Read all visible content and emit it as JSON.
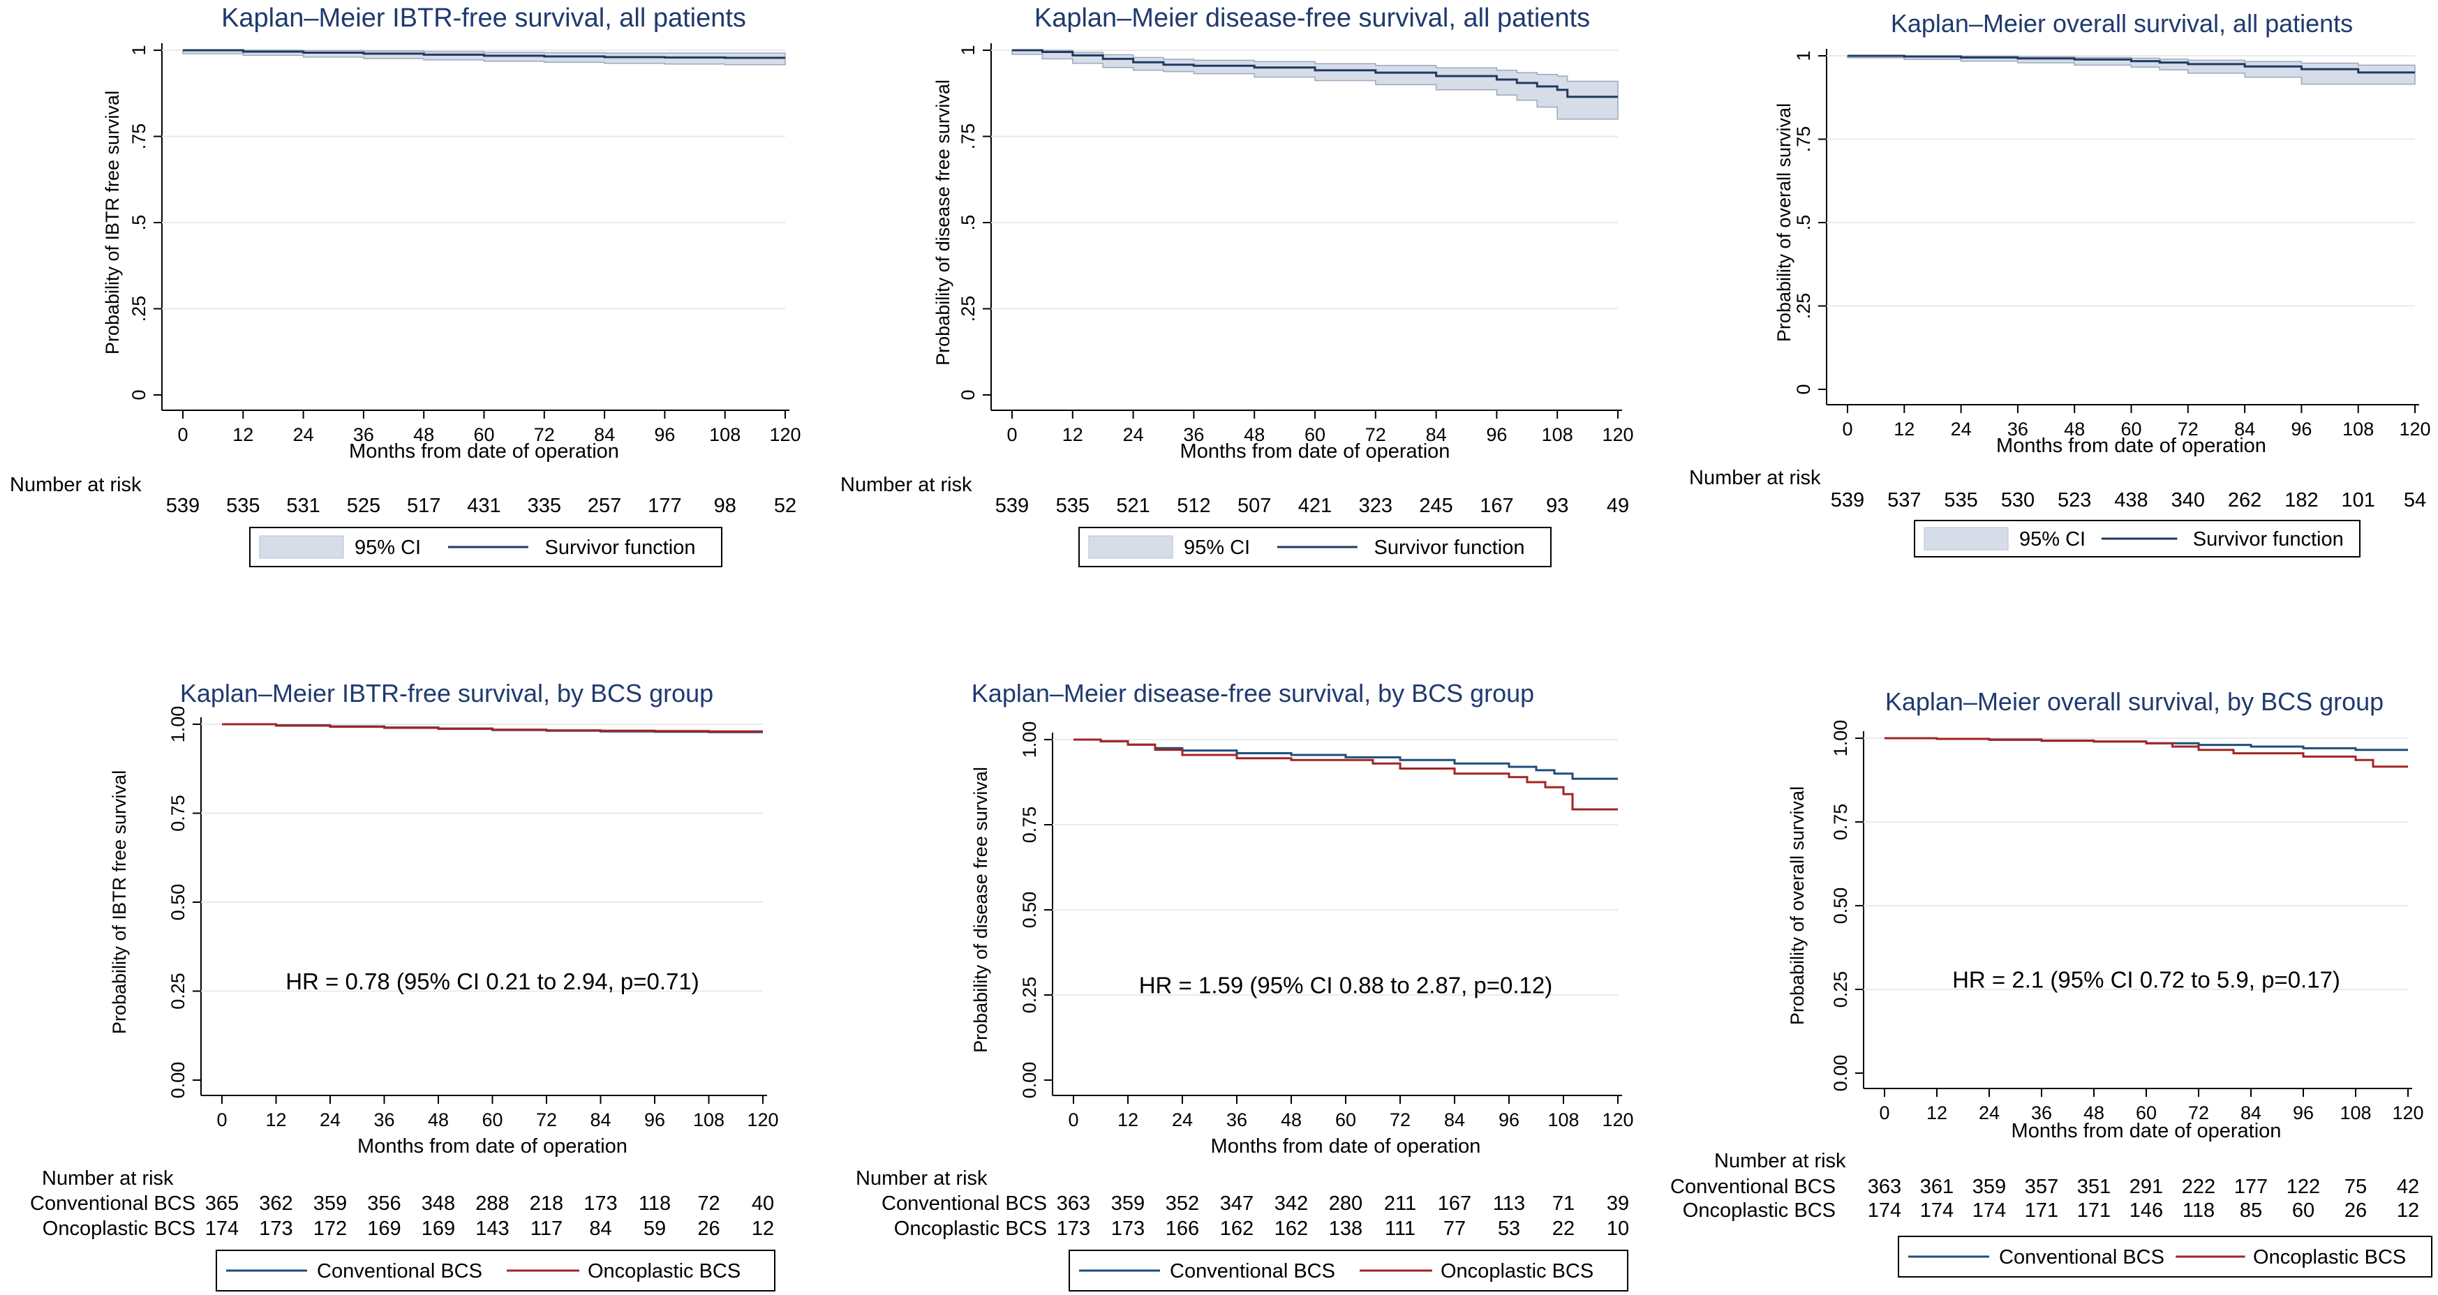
{
  "colors": {
    "single": "#1f3a5f",
    "ci_fill": "#d6dde8",
    "conventional": "#1f4e79",
    "oncoplastic": "#a32424",
    "title": "#1f3a6e",
    "axis": "#000000"
  },
  "chart_data": [
    {
      "id": "p1",
      "type": "line",
      "title": "Kaplan–Meier IBTR-free survival, all patients",
      "xlabel": "Months from date of operation",
      "ylabel": "Probability of IBTR free survival",
      "xlim": [
        0,
        120
      ],
      "ylim": [
        0,
        1
      ],
      "xticks": [
        "0",
        "12",
        "24",
        "36",
        "48",
        "60",
        "72",
        "84",
        "96",
        "108",
        "120"
      ],
      "yticks": [
        "0",
        ".25",
        ".5",
        ".75",
        "1"
      ],
      "series": [
        {
          "name": "Survivor function",
          "x": [
            0,
            12,
            24,
            36,
            48,
            60,
            72,
            84,
            96,
            108,
            120
          ],
          "y": [
            1.0,
            0.996,
            0.993,
            0.99,
            0.987,
            0.984,
            0.982,
            0.98,
            0.979,
            0.978,
            0.978
          ],
          "ci_low": [
            1.0,
            0.99,
            0.985,
            0.98,
            0.976,
            0.972,
            0.968,
            0.965,
            0.962,
            0.96,
            0.958
          ],
          "ci_high": [
            1.0,
            1.0,
            0.999,
            0.998,
            0.996,
            0.994,
            0.993,
            0.992,
            0.992,
            0.992,
            0.992
          ]
        }
      ],
      "risk_label": "Number at risk",
      "risk_rows": [
        {
          "name": "",
          "values": [
            "539",
            "535",
            "531",
            "525",
            "517",
            "431",
            "335",
            "257",
            "177",
            "98",
            "52"
          ]
        }
      ],
      "legend": [
        "95% CI",
        "Survivor function"
      ]
    },
    {
      "id": "p2",
      "type": "line",
      "title": "Kaplan–Meier disease-free survival, all patients",
      "xlabel": "Months from date of operation",
      "ylabel": "Probability of disease free survival",
      "xlim": [
        0,
        120
      ],
      "ylim": [
        0,
        1
      ],
      "xticks": [
        "0",
        "12",
        "24",
        "36",
        "48",
        "60",
        "72",
        "84",
        "96",
        "108",
        "120"
      ],
      "yticks": [
        "0",
        ".25",
        ".5",
        ".75",
        "1"
      ],
      "series": [
        {
          "name": "Survivor function",
          "x": [
            0,
            6,
            12,
            18,
            24,
            30,
            36,
            48,
            60,
            72,
            84,
            96,
            100,
            104,
            108,
            110,
            120
          ],
          "y": [
            1.0,
            0.995,
            0.985,
            0.975,
            0.965,
            0.958,
            0.955,
            0.95,
            0.942,
            0.935,
            0.925,
            0.915,
            0.905,
            0.895,
            0.885,
            0.865,
            0.865
          ],
          "ci_low": [
            1.0,
            0.988,
            0.975,
            0.962,
            0.95,
            0.942,
            0.938,
            0.932,
            0.922,
            0.912,
            0.9,
            0.885,
            0.87,
            0.855,
            0.835,
            0.8,
            0.8
          ],
          "ci_high": [
            1.0,
            1.0,
            0.994,
            0.987,
            0.979,
            0.974,
            0.971,
            0.967,
            0.961,
            0.956,
            0.949,
            0.942,
            0.935,
            0.93,
            0.925,
            0.91,
            0.91
          ]
        }
      ],
      "risk_label": "Number at risk",
      "risk_rows": [
        {
          "name": "",
          "values": [
            "539",
            "535",
            "521",
            "512",
            "507",
            "421",
            "323",
            "245",
            "167",
            "93",
            "49"
          ]
        }
      ],
      "legend": [
        "95% CI",
        "Survivor function"
      ]
    },
    {
      "id": "p3",
      "type": "line",
      "title": "Kaplan–Meier overall survival, all patients",
      "xlabel": "Months from date of operation",
      "ylabel": "Probability of overall survival",
      "xlim": [
        0,
        120
      ],
      "ylim": [
        0,
        1
      ],
      "xticks": [
        "0",
        "12",
        "24",
        "36",
        "48",
        "60",
        "72",
        "84",
        "96",
        "108",
        "120"
      ],
      "yticks": [
        "0",
        ".25",
        ".5",
        ".75",
        "1"
      ],
      "series": [
        {
          "name": "Survivor function",
          "x": [
            0,
            12,
            24,
            36,
            48,
            60,
            66,
            72,
            84,
            96,
            108,
            120
          ],
          "y": [
            1.0,
            0.998,
            0.995,
            0.992,
            0.989,
            0.984,
            0.98,
            0.975,
            0.968,
            0.96,
            0.95,
            0.95
          ],
          "ci_low": [
            1.0,
            0.994,
            0.989,
            0.984,
            0.979,
            0.972,
            0.966,
            0.958,
            0.948,
            0.936,
            0.915,
            0.915
          ],
          "ci_high": [
            1.0,
            1.0,
            0.999,
            0.997,
            0.995,
            0.993,
            0.99,
            0.987,
            0.983,
            0.978,
            0.972,
            0.972
          ]
        }
      ],
      "risk_label": "Number at risk",
      "risk_rows": [
        {
          "name": "",
          "values": [
            "539",
            "537",
            "535",
            "530",
            "523",
            "438",
            "340",
            "262",
            "182",
            "101",
            "54"
          ]
        }
      ],
      "legend": [
        "95% CI",
        "Survivor function"
      ]
    },
    {
      "id": "p4",
      "type": "line",
      "title": "Kaplan–Meier IBTR-free survival, by BCS group",
      "xlabel": "Months from date of operation",
      "ylabel": "Probability of IBTR free survival",
      "xlim": [
        0,
        120
      ],
      "ylim": [
        0,
        1
      ],
      "xticks": [
        "0",
        "12",
        "24",
        "36",
        "48",
        "60",
        "72",
        "84",
        "96",
        "108",
        "120"
      ],
      "yticks": [
        "0.00",
        "0.25",
        "0.50",
        "0.75",
        "1.00"
      ],
      "annotation": "HR = 0.78  (95% CI 0.21 to 2.94, p=0.71)",
      "series": [
        {
          "name": "Conventional BCS",
          "x": [
            0,
            12,
            24,
            36,
            48,
            60,
            72,
            84,
            96,
            108,
            120
          ],
          "y": [
            1.0,
            0.997,
            0.994,
            0.991,
            0.988,
            0.984,
            0.982,
            0.98,
            0.979,
            0.978,
            0.978
          ]
        },
        {
          "name": "Oncoplastic BCS",
          "x": [
            0,
            12,
            24,
            36,
            48,
            60,
            72,
            84,
            96,
            108,
            120
          ],
          "y": [
            1.0,
            0.996,
            0.993,
            0.99,
            0.987,
            0.985,
            0.983,
            0.982,
            0.981,
            0.98,
            0.98
          ]
        }
      ],
      "risk_label": "Number at risk",
      "risk_rows": [
        {
          "name": "Conventional BCS",
          "values": [
            "365",
            "362",
            "359",
            "356",
            "348",
            "288",
            "218",
            "173",
            "118",
            "72",
            "40"
          ]
        },
        {
          "name": "Oncoplastic BCS",
          "values": [
            "174",
            "173",
            "172",
            "169",
            "169",
            "143",
            "117",
            "84",
            "59",
            "26",
            "12"
          ]
        }
      ],
      "legend": [
        "Conventional BCS",
        "Oncoplastic BCS"
      ]
    },
    {
      "id": "p5",
      "type": "line",
      "title": "Kaplan–Meier disease-free survival, by BCS group",
      "xlabel": "Months from date of operation",
      "ylabel": "Probability of disease free survival",
      "xlim": [
        0,
        120
      ],
      "ylim": [
        0,
        1
      ],
      "xticks": [
        "0",
        "12",
        "24",
        "36",
        "48",
        "60",
        "72",
        "84",
        "96",
        "108",
        "120"
      ],
      "yticks": [
        "0.00",
        "0.25",
        "0.50",
        "0.75",
        "1.00"
      ],
      "annotation": "HR = 1.59  (95% CI 0.88 to 2.87, p=0.12)",
      "series": [
        {
          "name": "Conventional BCS",
          "x": [
            0,
            6,
            12,
            18,
            24,
            36,
            48,
            60,
            72,
            84,
            96,
            102,
            106,
            110,
            120
          ],
          "y": [
            1.0,
            0.995,
            0.985,
            0.975,
            0.968,
            0.96,
            0.955,
            0.948,
            0.94,
            0.93,
            0.92,
            0.91,
            0.9,
            0.885,
            0.885
          ]
        },
        {
          "name": "Oncoplastic BCS",
          "x": [
            0,
            6,
            12,
            18,
            24,
            36,
            48,
            60,
            66,
            72,
            84,
            96,
            100,
            104,
            108,
            110,
            120
          ],
          "y": [
            1.0,
            0.995,
            0.985,
            0.97,
            0.955,
            0.945,
            0.94,
            0.94,
            0.93,
            0.915,
            0.9,
            0.89,
            0.875,
            0.86,
            0.84,
            0.795,
            0.795
          ]
        }
      ],
      "risk_label": "Number at risk",
      "risk_rows": [
        {
          "name": "Conventional BCS",
          "values": [
            "363",
            "359",
            "352",
            "347",
            "342",
            "280",
            "211",
            "167",
            "113",
            "71",
            "39"
          ]
        },
        {
          "name": "Oncoplastic BCS",
          "values": [
            "173",
            "173",
            "166",
            "162",
            "162",
            "138",
            "111",
            "77",
            "53",
            "22",
            "10"
          ]
        }
      ],
      "legend": [
        "Conventional BCS",
        "Oncoplastic BCS"
      ]
    },
    {
      "id": "p6",
      "type": "line",
      "title": "Kaplan–Meier overall survival, by BCS group",
      "xlabel": "Months from date of operation",
      "ylabel": "Probability of overall survival",
      "xlim": [
        0,
        120
      ],
      "ylim": [
        0,
        1
      ],
      "xticks": [
        "0",
        "12",
        "24",
        "36",
        "48",
        "60",
        "72",
        "84",
        "96",
        "108",
        "120"
      ],
      "yticks": [
        "0.00",
        "0.25",
        "0.50",
        "0.75",
        "1.00"
      ],
      "annotation": "HR = 2.1  (95% CI 0.72 to 5.9, p=0.17)",
      "series": [
        {
          "name": "Conventional BCS",
          "x": [
            0,
            12,
            24,
            36,
            48,
            60,
            72,
            84,
            96,
            108,
            120
          ],
          "y": [
            1.0,
            0.998,
            0.996,
            0.993,
            0.99,
            0.985,
            0.98,
            0.975,
            0.97,
            0.965,
            0.965
          ]
        },
        {
          "name": "Oncoplastic BCS",
          "x": [
            0,
            12,
            24,
            36,
            48,
            60,
            66,
            72,
            80,
            96,
            108,
            112,
            120
          ],
          "y": [
            1.0,
            0.998,
            0.995,
            0.992,
            0.99,
            0.985,
            0.975,
            0.965,
            0.955,
            0.945,
            0.935,
            0.915,
            0.915
          ]
        }
      ],
      "risk_label": "Number at risk",
      "risk_rows": [
        {
          "name": "Conventional BCS",
          "values": [
            "363",
            "361",
            "359",
            "357",
            "351",
            "291",
            "222",
            "177",
            "122",
            "75",
            "42"
          ]
        },
        {
          "name": "Oncoplastic BCS",
          "values": [
            "174",
            "174",
            "174",
            "171",
            "171",
            "146",
            "118",
            "85",
            "60",
            "26",
            "12"
          ]
        }
      ],
      "legend": [
        "Conventional BCS",
        "Oncoplastic BCS"
      ]
    }
  ]
}
